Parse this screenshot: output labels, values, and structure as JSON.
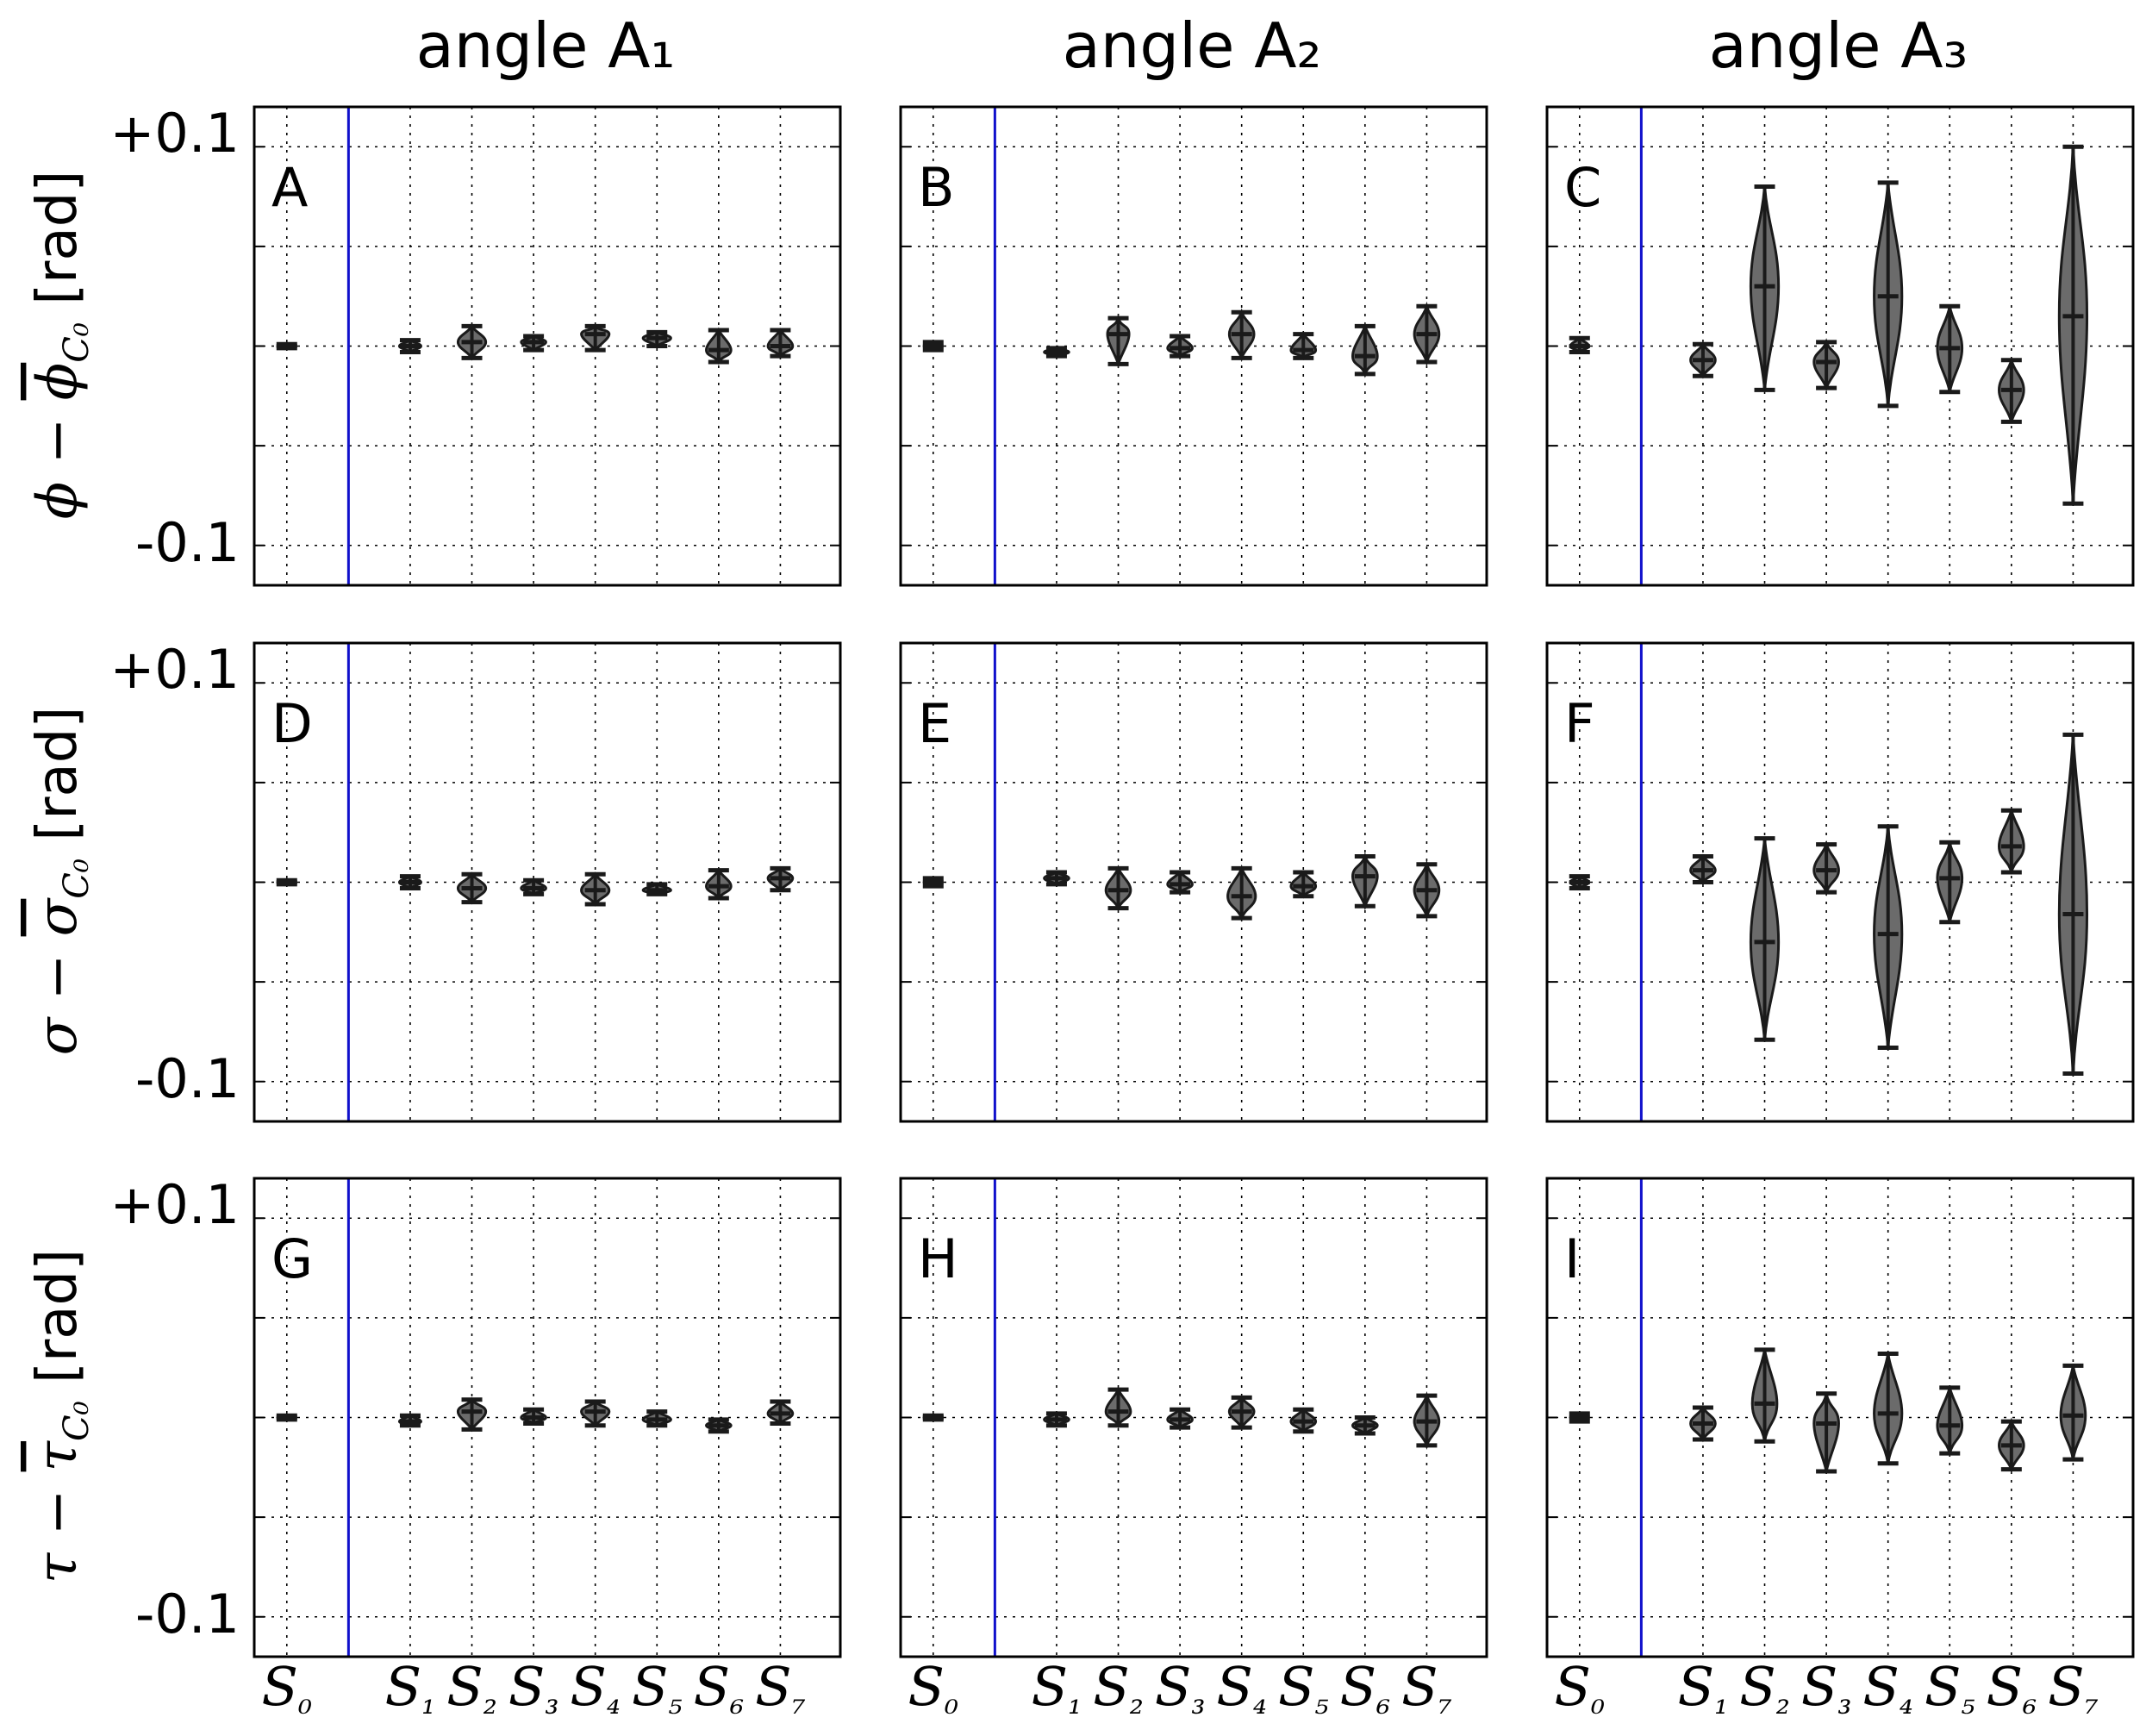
{
  "figure": {
    "column_titles": [
      "angle A₁",
      "angle A₂",
      "angle A₃"
    ],
    "row_ylabels": [
      {
        "symbol": "ϕ",
        "mean": "ϕ",
        "sub": "C₀",
        "unit": "[rad]"
      },
      {
        "symbol": "σ",
        "mean": "σ",
        "sub": "C₀",
        "unit": "[rad]"
      },
      {
        "symbol": "τ",
        "mean": "τ",
        "sub": "C₀",
        "unit": "[rad]"
      }
    ],
    "row_ytick_labels": [
      "+0.1",
      "-0.1"
    ],
    "x_tick_labels": [
      "S₀",
      "S₁",
      "S₂",
      "S₃",
      "S₄",
      "S₅",
      "S₆",
      "S₇"
    ],
    "colors": {
      "violin": "#6b6b6b",
      "outline": "#1a1a1a",
      "separator": "#1010cc",
      "grid": "#000000"
    }
  },
  "chart_data": [
    {
      "panel": "A",
      "type": "violin",
      "row": 0,
      "col": 0,
      "ylim": [
        -0.12,
        0.12
      ],
      "yticks": [
        -0.1,
        -0.05,
        0,
        0.05,
        0.1
      ],
      "series": [
        {
          "cat": "S₀",
          "median": 0.0,
          "min": -0.001,
          "max": 0.001,
          "w": 0.3
        },
        {
          "cat": "S₁",
          "median": 0.0,
          "min": -0.003,
          "max": 0.003,
          "w": 0.35
        },
        {
          "cat": "S₂",
          "median": 0.002,
          "min": -0.006,
          "max": 0.01,
          "w": 0.45
        },
        {
          "cat": "S₃",
          "median": 0.002,
          "min": -0.002,
          "max": 0.005,
          "w": 0.4
        },
        {
          "cat": "S₄",
          "median": 0.006,
          "min": -0.002,
          "max": 0.01,
          "w": 0.45
        },
        {
          "cat": "S₅",
          "median": 0.004,
          "min": 0.0,
          "max": 0.007,
          "w": 0.45
        },
        {
          "cat": "S₆",
          "median": -0.002,
          "min": -0.008,
          "max": 0.008,
          "w": 0.4
        },
        {
          "cat": "S₇",
          "median": 0.0,
          "min": -0.005,
          "max": 0.008,
          "w": 0.4
        }
      ]
    },
    {
      "panel": "B",
      "type": "violin",
      "row": 0,
      "col": 1,
      "ylim": [
        -0.12,
        0.12
      ],
      "yticks": [
        -0.1,
        -0.05,
        0,
        0.05,
        0.1
      ],
      "series": [
        {
          "cat": "S₀",
          "median": 0.0,
          "min": -0.002,
          "max": 0.002,
          "w": 0.3
        },
        {
          "cat": "S₁",
          "median": -0.003,
          "min": -0.005,
          "max": -0.001,
          "w": 0.4
        },
        {
          "cat": "S₂",
          "median": 0.006,
          "min": -0.009,
          "max": 0.014,
          "w": 0.35
        },
        {
          "cat": "S₃",
          "median": -0.001,
          "min": -0.005,
          "max": 0.005,
          "w": 0.4
        },
        {
          "cat": "S₄",
          "median": 0.006,
          "min": -0.006,
          "max": 0.017,
          "w": 0.4
        },
        {
          "cat": "S₅",
          "median": -0.002,
          "min": -0.006,
          "max": 0.006,
          "w": 0.4
        },
        {
          "cat": "S₆",
          "median": -0.005,
          "min": -0.014,
          "max": 0.01,
          "w": 0.4
        },
        {
          "cat": "S₇",
          "median": 0.006,
          "min": -0.008,
          "max": 0.02,
          "w": 0.4
        }
      ]
    },
    {
      "panel": "C",
      "type": "violin",
      "row": 0,
      "col": 2,
      "ylim": [
        -0.12,
        0.12
      ],
      "yticks": [
        -0.1,
        -0.05,
        0,
        0.05,
        0.1
      ],
      "series": [
        {
          "cat": "S₀",
          "median": 0.0,
          "min": -0.003,
          "max": 0.004,
          "w": 0.3
        },
        {
          "cat": "S₁",
          "median": -0.007,
          "min": -0.015,
          "max": 0.001,
          "w": 0.4
        },
        {
          "cat": "S₂",
          "median": 0.03,
          "min": -0.022,
          "max": 0.08,
          "w": 0.45
        },
        {
          "cat": "S₃",
          "median": -0.008,
          "min": -0.021,
          "max": 0.002,
          "w": 0.4
        },
        {
          "cat": "S₄",
          "median": 0.025,
          "min": -0.03,
          "max": 0.082,
          "w": 0.45
        },
        {
          "cat": "S₅",
          "median": -0.001,
          "min": -0.023,
          "max": 0.02,
          "w": 0.4
        },
        {
          "cat": "S₆",
          "median": -0.022,
          "min": -0.038,
          "max": -0.007,
          "w": 0.4
        },
        {
          "cat": "S₇",
          "median": 0.015,
          "min": -0.079,
          "max": 0.1,
          "w": 0.45
        }
      ]
    },
    {
      "panel": "D",
      "type": "violin",
      "row": 1,
      "col": 0,
      "ylim": [
        -0.12,
        0.12
      ],
      "yticks": [
        -0.1,
        -0.05,
        0,
        0.05,
        0.1
      ],
      "series": [
        {
          "cat": "S₀",
          "median": 0.0,
          "min": -0.001,
          "max": 0.001,
          "w": 0.3
        },
        {
          "cat": "S₁",
          "median": 0.0,
          "min": -0.003,
          "max": 0.003,
          "w": 0.35
        },
        {
          "cat": "S₂",
          "median": -0.003,
          "min": -0.01,
          "max": 0.004,
          "w": 0.45
        },
        {
          "cat": "S₃",
          "median": -0.003,
          "min": -0.006,
          "max": 0.001,
          "w": 0.4
        },
        {
          "cat": "S₄",
          "median": -0.004,
          "min": -0.011,
          "max": 0.004,
          "w": 0.45
        },
        {
          "cat": "S₅",
          "median": -0.004,
          "min": -0.006,
          "max": -0.001,
          "w": 0.45
        },
        {
          "cat": "S₆",
          "median": -0.002,
          "min": -0.008,
          "max": 0.006,
          "w": 0.4
        },
        {
          "cat": "S₇",
          "median": 0.002,
          "min": -0.004,
          "max": 0.007,
          "w": 0.4
        }
      ]
    },
    {
      "panel": "E",
      "type": "violin",
      "row": 1,
      "col": 1,
      "ylim": [
        -0.12,
        0.12
      ],
      "yticks": [
        -0.1,
        -0.05,
        0,
        0.05,
        0.1
      ],
      "series": [
        {
          "cat": "S₀",
          "median": 0.0,
          "min": -0.002,
          "max": 0.002,
          "w": 0.3
        },
        {
          "cat": "S₁",
          "median": 0.002,
          "min": -0.001,
          "max": 0.005,
          "w": 0.4
        },
        {
          "cat": "S₂",
          "median": -0.004,
          "min": -0.013,
          "max": 0.007,
          "w": 0.4
        },
        {
          "cat": "S₃",
          "median": -0.001,
          "min": -0.005,
          "max": 0.005,
          "w": 0.4
        },
        {
          "cat": "S₄",
          "median": -0.007,
          "min": -0.018,
          "max": 0.007,
          "w": 0.45
        },
        {
          "cat": "S₅",
          "median": -0.002,
          "min": -0.007,
          "max": 0.005,
          "w": 0.4
        },
        {
          "cat": "S₆",
          "median": 0.003,
          "min": -0.012,
          "max": 0.013,
          "w": 0.4
        },
        {
          "cat": "S₇",
          "median": -0.004,
          "min": -0.017,
          "max": 0.009,
          "w": 0.4
        }
      ]
    },
    {
      "panel": "F",
      "type": "violin",
      "row": 1,
      "col": 2,
      "ylim": [
        -0.12,
        0.12
      ],
      "yticks": [
        -0.1,
        -0.05,
        0,
        0.05,
        0.1
      ],
      "series": [
        {
          "cat": "S₀",
          "median": 0.0,
          "min": -0.003,
          "max": 0.003,
          "w": 0.3
        },
        {
          "cat": "S₁",
          "median": 0.006,
          "min": 0.0,
          "max": 0.013,
          "w": 0.4
        },
        {
          "cat": "S₂",
          "median": -0.03,
          "min": -0.079,
          "max": 0.022,
          "w": 0.45
        },
        {
          "cat": "S₃",
          "median": 0.006,
          "min": -0.005,
          "max": 0.019,
          "w": 0.4
        },
        {
          "cat": "S₄",
          "median": -0.026,
          "min": -0.083,
          "max": 0.028,
          "w": 0.45
        },
        {
          "cat": "S₅",
          "median": 0.002,
          "min": -0.02,
          "max": 0.02,
          "w": 0.4
        },
        {
          "cat": "S₆",
          "median": 0.018,
          "min": 0.005,
          "max": 0.036,
          "w": 0.4
        },
        {
          "cat": "S₇",
          "median": -0.016,
          "min": -0.096,
          "max": 0.074,
          "w": 0.45
        }
      ]
    },
    {
      "panel": "G",
      "type": "violin",
      "row": 2,
      "col": 0,
      "ylim": [
        -0.12,
        0.12
      ],
      "yticks": [
        -0.1,
        -0.05,
        0,
        0.05,
        0.1
      ],
      "series": [
        {
          "cat": "S₀",
          "median": 0.0,
          "min": -0.001,
          "max": 0.001,
          "w": 0.3
        },
        {
          "cat": "S₁",
          "median": -0.002,
          "min": -0.004,
          "max": 0.001,
          "w": 0.35
        },
        {
          "cat": "S₂",
          "median": 0.003,
          "min": -0.006,
          "max": 0.009,
          "w": 0.45
        },
        {
          "cat": "S₃",
          "median": 0.0,
          "min": -0.003,
          "max": 0.004,
          "w": 0.4
        },
        {
          "cat": "S₄",
          "median": 0.003,
          "min": -0.004,
          "max": 0.008,
          "w": 0.45
        },
        {
          "cat": "S₅",
          "median": -0.001,
          "min": -0.004,
          "max": 0.003,
          "w": 0.45
        },
        {
          "cat": "S₆",
          "median": -0.004,
          "min": -0.007,
          "max": -0.001,
          "w": 0.4
        },
        {
          "cat": "S₇",
          "median": 0.002,
          "min": -0.003,
          "max": 0.008,
          "w": 0.4
        }
      ]
    },
    {
      "panel": "H",
      "type": "violin",
      "row": 2,
      "col": 1,
      "ylim": [
        -0.12,
        0.12
      ],
      "yticks": [
        -0.1,
        -0.05,
        0,
        0.05,
        0.1
      ],
      "series": [
        {
          "cat": "S₀",
          "median": 0.0,
          "min": -0.001,
          "max": 0.001,
          "w": 0.3
        },
        {
          "cat": "S₁",
          "median": -0.001,
          "min": -0.004,
          "max": 0.002,
          "w": 0.4
        },
        {
          "cat": "S₂",
          "median": 0.003,
          "min": -0.004,
          "max": 0.014,
          "w": 0.4
        },
        {
          "cat": "S₃",
          "median": -0.001,
          "min": -0.005,
          "max": 0.004,
          "w": 0.4
        },
        {
          "cat": "S₄",
          "median": 0.003,
          "min": -0.005,
          "max": 0.01,
          "w": 0.4
        },
        {
          "cat": "S₅",
          "median": -0.002,
          "min": -0.007,
          "max": 0.004,
          "w": 0.4
        },
        {
          "cat": "S₆",
          "median": -0.004,
          "min": -0.008,
          "max": 0.0,
          "w": 0.4
        },
        {
          "cat": "S₇",
          "median": -0.002,
          "min": -0.014,
          "max": 0.011,
          "w": 0.4
        }
      ]
    },
    {
      "panel": "I",
      "type": "violin",
      "row": 2,
      "col": 2,
      "ylim": [
        -0.12,
        0.12
      ],
      "yticks": [
        -0.1,
        -0.05,
        0,
        0.05,
        0.1
      ],
      "series": [
        {
          "cat": "S₀",
          "median": 0.0,
          "min": -0.002,
          "max": 0.002,
          "w": 0.3
        },
        {
          "cat": "S₁",
          "median": -0.003,
          "min": -0.011,
          "max": 0.005,
          "w": 0.4
        },
        {
          "cat": "S₂",
          "median": 0.007,
          "min": -0.012,
          "max": 0.034,
          "w": 0.4
        },
        {
          "cat": "S₃",
          "median": -0.003,
          "min": -0.027,
          "max": 0.012,
          "w": 0.4
        },
        {
          "cat": "S₄",
          "median": 0.002,
          "min": -0.023,
          "max": 0.032,
          "w": 0.45
        },
        {
          "cat": "S₅",
          "median": -0.004,
          "min": -0.018,
          "max": 0.015,
          "w": 0.4
        },
        {
          "cat": "S₆",
          "median": -0.014,
          "min": -0.026,
          "max": -0.002,
          "w": 0.4
        },
        {
          "cat": "S₇",
          "median": 0.001,
          "min": -0.021,
          "max": 0.026,
          "w": 0.4
        }
      ]
    }
  ]
}
